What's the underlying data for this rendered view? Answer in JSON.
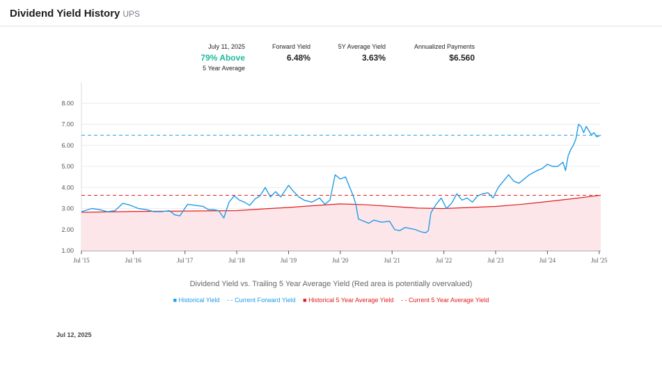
{
  "header": {
    "title": "Dividend Yield History",
    "ticker": "UPS"
  },
  "stats": {
    "date": "July 11, 2025",
    "above_value": "79% Above",
    "above_sub": "5 Year Average",
    "forward_label": "Forward Yield",
    "forward_value": "6.48%",
    "avg_label": "5Y Average Yield",
    "avg_value": "3.63%",
    "payments_label": "Annualized Payments",
    "payments_value": "$6.560"
  },
  "caption": "Dividend Yield vs. Trailing 5 Year Average Yield (Red area is potentially overvalued)",
  "legend": {
    "historical": "Historical Yield",
    "forward": "Current Forward Yield",
    "avg5": "Historical 5 Year Average Yield",
    "cur_avg5": "Current 5 Year Average Yield"
  },
  "footer_date": "Jul 12, 2025",
  "colors": {
    "historical": "#1e9be9",
    "avg5": "#e31b1b",
    "area": "#fde6ea",
    "green": "#1abc9c"
  },
  "chart_data": {
    "type": "line",
    "x_ticks": [
      "Jul '15",
      "Jul '16",
      "Jul '17",
      "Jul '18",
      "Jul '19",
      "Jul '20",
      "Jul '21",
      "Jul '22",
      "Jul '23",
      "Jul '24",
      "Jul '25"
    ],
    "y_ticks": [
      "1.00",
      "2.00",
      "3.00",
      "4.00",
      "5.00",
      "6.00",
      "7.00",
      "8.00"
    ],
    "ylim": [
      1,
      9
    ],
    "xlim": [
      2015.5,
      2025.53
    ],
    "forward_yield": 6.48,
    "current_avg5": 3.63,
    "series": [
      {
        "name": "Historical Yield",
        "points": [
          [
            2015.5,
            2.85
          ],
          [
            2015.7,
            3.0
          ],
          [
            2015.85,
            2.95
          ],
          [
            2016.0,
            2.85
          ],
          [
            2016.15,
            2.9
          ],
          [
            2016.3,
            3.25
          ],
          [
            2016.45,
            3.15
          ],
          [
            2016.6,
            3.0
          ],
          [
            2016.75,
            2.95
          ],
          [
            2016.9,
            2.85
          ],
          [
            2017.05,
            2.85
          ],
          [
            2017.2,
            2.9
          ],
          [
            2017.3,
            2.7
          ],
          [
            2017.4,
            2.65
          ],
          [
            2017.55,
            3.2
          ],
          [
            2017.7,
            3.15
          ],
          [
            2017.85,
            3.1
          ],
          [
            2017.95,
            2.95
          ],
          [
            2018.05,
            2.95
          ],
          [
            2018.15,
            2.9
          ],
          [
            2018.25,
            2.55
          ],
          [
            2018.35,
            3.3
          ],
          [
            2018.45,
            3.6
          ],
          [
            2018.55,
            3.4
          ],
          [
            2018.65,
            3.3
          ],
          [
            2018.75,
            3.15
          ],
          [
            2018.85,
            3.45
          ],
          [
            2018.95,
            3.6
          ],
          [
            2019.05,
            4.0
          ],
          [
            2019.15,
            3.55
          ],
          [
            2019.25,
            3.8
          ],
          [
            2019.35,
            3.55
          ],
          [
            2019.5,
            4.1
          ],
          [
            2019.6,
            3.8
          ],
          [
            2019.7,
            3.55
          ],
          [
            2019.8,
            3.4
          ],
          [
            2019.95,
            3.3
          ],
          [
            2020.1,
            3.5
          ],
          [
            2020.2,
            3.2
          ],
          [
            2020.3,
            3.4
          ],
          [
            2020.4,
            4.6
          ],
          [
            2020.5,
            4.4
          ],
          [
            2020.6,
            4.5
          ],
          [
            2020.7,
            3.9
          ],
          [
            2020.75,
            3.6
          ],
          [
            2020.8,
            3.2
          ],
          [
            2020.85,
            2.5
          ],
          [
            2020.95,
            2.4
          ],
          [
            2021.05,
            2.3
          ],
          [
            2021.15,
            2.45
          ],
          [
            2021.3,
            2.35
          ],
          [
            2021.45,
            2.4
          ],
          [
            2021.55,
            2.0
          ],
          [
            2021.65,
            1.95
          ],
          [
            2021.75,
            2.1
          ],
          [
            2021.85,
            2.05
          ],
          [
            2021.95,
            2.0
          ],
          [
            2022.05,
            1.9
          ],
          [
            2022.15,
            1.85
          ],
          [
            2022.2,
            1.95
          ],
          [
            2022.25,
            2.8
          ],
          [
            2022.35,
            3.2
          ],
          [
            2022.45,
            3.5
          ],
          [
            2022.55,
            3.0
          ],
          [
            2022.65,
            3.25
          ],
          [
            2022.75,
            3.7
          ],
          [
            2022.85,
            3.4
          ],
          [
            2022.95,
            3.5
          ],
          [
            2023.05,
            3.3
          ],
          [
            2023.15,
            3.6
          ],
          [
            2023.25,
            3.7
          ],
          [
            2023.35,
            3.75
          ],
          [
            2023.45,
            3.5
          ],
          [
            2023.55,
            4.0
          ],
          [
            2023.65,
            4.3
          ],
          [
            2023.75,
            4.6
          ],
          [
            2023.85,
            4.3
          ],
          [
            2023.95,
            4.2
          ],
          [
            2024.05,
            4.4
          ],
          [
            2024.15,
            4.6
          ],
          [
            2024.3,
            4.8
          ],
          [
            2024.4,
            4.9
          ],
          [
            2024.5,
            5.1
          ],
          [
            2024.6,
            5.0
          ],
          [
            2024.7,
            5.0
          ],
          [
            2024.8,
            5.2
          ],
          [
            2024.85,
            4.8
          ],
          [
            2024.9,
            5.5
          ],
          [
            2024.95,
            5.8
          ],
          [
            2025.0,
            6.0
          ],
          [
            2025.05,
            6.3
          ],
          [
            2025.1,
            7.0
          ],
          [
            2025.15,
            6.9
          ],
          [
            2025.2,
            6.6
          ],
          [
            2025.25,
            6.9
          ],
          [
            2025.3,
            6.7
          ],
          [
            2025.35,
            6.5
          ],
          [
            2025.4,
            6.6
          ],
          [
            2025.45,
            6.4
          ],
          [
            2025.53,
            6.48
          ]
        ]
      },
      {
        "name": "Historical 5 Year Average Yield",
        "points": [
          [
            2015.5,
            2.82
          ],
          [
            2016.5,
            2.86
          ],
          [
            2017.5,
            2.88
          ],
          [
            2018.5,
            2.9
          ],
          [
            2019.0,
            2.98
          ],
          [
            2019.5,
            3.05
          ],
          [
            2020.0,
            3.14
          ],
          [
            2020.5,
            3.22
          ],
          [
            2021.0,
            3.18
          ],
          [
            2021.5,
            3.1
          ],
          [
            2022.0,
            3.02
          ],
          [
            2022.5,
            3.0
          ],
          [
            2023.0,
            3.05
          ],
          [
            2023.5,
            3.1
          ],
          [
            2024.0,
            3.2
          ],
          [
            2024.5,
            3.33
          ],
          [
            2025.0,
            3.47
          ],
          [
            2025.53,
            3.63
          ]
        ]
      }
    ]
  }
}
